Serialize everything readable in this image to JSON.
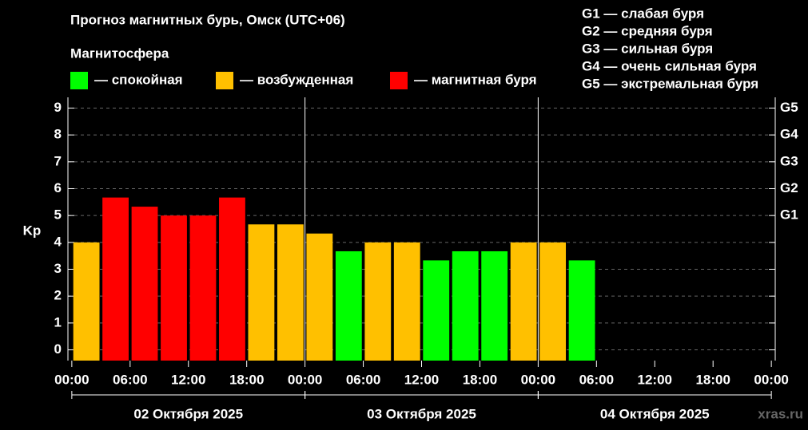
{
  "chart_data": {
    "type": "bar",
    "title": "Прогноз магнитных бурь, Омск (UTC+06)",
    "subtitle": "Магнитосфера",
    "legend": [
      {
        "label": "— спокойная",
        "color": "#00ff00"
      },
      {
        "label": "— возбужденная",
        "color": "#ffc000"
      },
      {
        "label": "— магнитная буря",
        "color": "#ff0000"
      }
    ],
    "g_legend": [
      "G1 — слабая буря",
      "G2 — средняя буря",
      "G3 — сильная буря",
      "G4 — очень сильная буря",
      "G5 — экстремальная буря"
    ],
    "ylabel": "Kp",
    "x": [
      1.5,
      4.5,
      7.5,
      10.5,
      13.5,
      16.5,
      19.5,
      22.5,
      25.5,
      28.5,
      31.5,
      34.5,
      37.5,
      40.5,
      43.5,
      46.5,
      49.5,
      52.5
    ],
    "values": [
      4.0,
      5.67,
      5.33,
      5.0,
      5.0,
      5.67,
      4.67,
      4.67,
      4.33,
      3.67,
      4.0,
      4.0,
      3.33,
      3.67,
      3.67,
      4.0,
      4.0,
      3.33
    ],
    "colors": [
      "#ffc000",
      "#ff0000",
      "#ff0000",
      "#ff0000",
      "#ff0000",
      "#ff0000",
      "#ffc000",
      "#ffc000",
      "#ffc000",
      "#00ff00",
      "#ffc000",
      "#ffc000",
      "#00ff00",
      "#00ff00",
      "#00ff00",
      "#ffc000",
      "#ffc000",
      "#00ff00"
    ],
    "bar_hours": 3,
    "xlim": [
      -0.4,
      72.4
    ],
    "xticks": [
      {
        "value": 0,
        "label": "00:00"
      },
      {
        "value": 6,
        "label": "06:00"
      },
      {
        "value": 12,
        "label": "12:00"
      },
      {
        "value": 18,
        "label": "18:00"
      },
      {
        "value": 24,
        "label": "00:00"
      },
      {
        "value": 30,
        "label": "06:00"
      },
      {
        "value": 36,
        "label": "12:00"
      },
      {
        "value": 42,
        "label": "18:00"
      },
      {
        "value": 48,
        "label": "00:00"
      },
      {
        "value": 54,
        "label": "06:00"
      },
      {
        "value": 60,
        "label": "12:00"
      },
      {
        "value": 66,
        "label": "18:00"
      },
      {
        "value": 72,
        "label": "00:00"
      }
    ],
    "days": [
      {
        "start": 0,
        "end": 24,
        "label": "02 Октября 2025"
      },
      {
        "start": 24,
        "end": 48,
        "label": "03 Октября 2025"
      },
      {
        "start": 48,
        "end": 72,
        "label": "04 Октября 2025"
      }
    ],
    "ylim": [
      -0.4,
      9.4
    ],
    "yticks": [
      0,
      1,
      2,
      3,
      4,
      5,
      6,
      7,
      8,
      9
    ],
    "y2lim": [
      -0.4,
      9.4
    ],
    "y2ticks": [
      {
        "value": 5,
        "label": "G1"
      },
      {
        "value": 6,
        "label": "G2"
      },
      {
        "value": 7,
        "label": "G3"
      },
      {
        "value": 8,
        "label": "G4"
      },
      {
        "value": 9,
        "label": "G5"
      }
    ],
    "grid": true,
    "watermark": "xras.ru"
  }
}
